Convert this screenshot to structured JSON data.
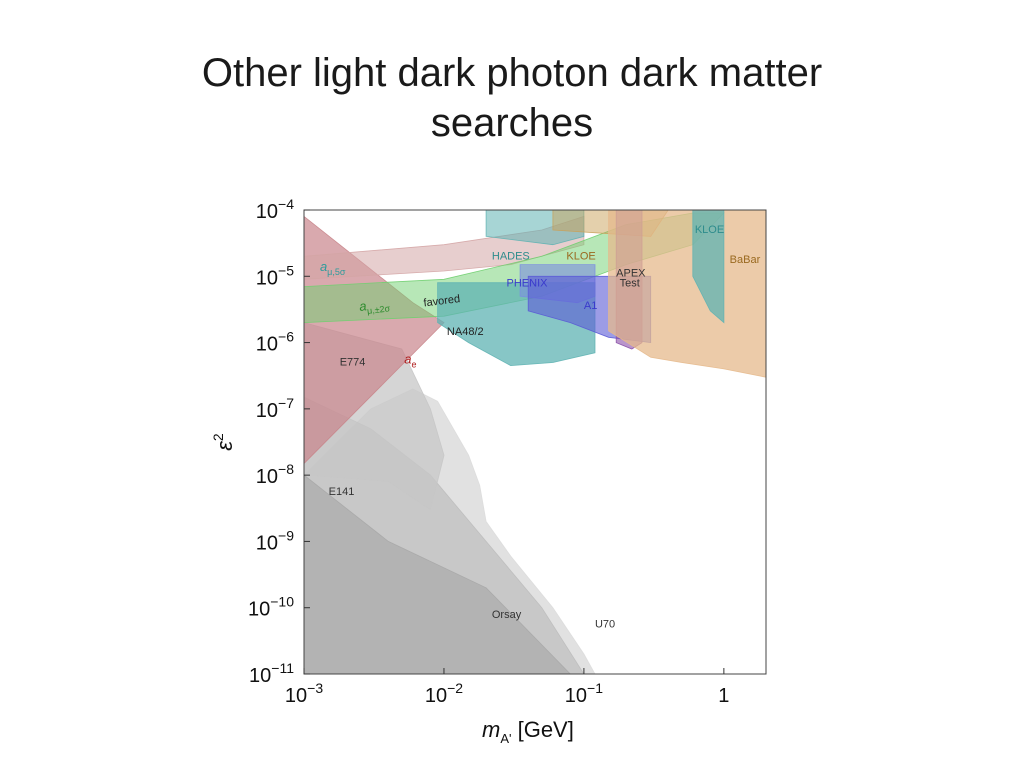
{
  "slide": {
    "title_line1": "Other light dark photon dark matter",
    "title_line2": "searches"
  },
  "colors": {
    "gray": "#b5b5b5",
    "light_gray": "#d9d9d9",
    "red": "#c9858b",
    "green": "#6fcf6f",
    "teal": "#5fb3b3",
    "orange": "#e6b98c",
    "purple": "#8a4fa8",
    "blue": "#5a5ad6"
  },
  "chart_data": {
    "type": "area",
    "xscale": "log",
    "yscale": "log",
    "xlim": [
      0.001,
      2
    ],
    "ylim": [
      1e-11,
      0.0001
    ],
    "xlabel_main": "m",
    "xlabel_sub": "A'",
    "xlabel_unit": " [GeV]",
    "ylabel_main": "ε",
    "ylabel_sup": "2",
    "x_ticks": [
      {
        "value": 0.001,
        "base": "10",
        "exp": "−3"
      },
      {
        "value": 0.01,
        "base": "10",
        "exp": "−2"
      },
      {
        "value": 0.1,
        "base": "10",
        "exp": "−1"
      },
      {
        "value": 1,
        "base": "1",
        "exp": ""
      }
    ],
    "y_ticks": [
      {
        "value": 0.0001,
        "base": "10",
        "exp": "−4"
      },
      {
        "value": 1e-05,
        "base": "10",
        "exp": "−5"
      },
      {
        "value": 1e-06,
        "base": "10",
        "exp": "−6"
      },
      {
        "value": 1e-07,
        "base": "10",
        "exp": "−7"
      },
      {
        "value": 1e-08,
        "base": "10",
        "exp": "−8"
      },
      {
        "value": 1e-09,
        "base": "10",
        "exp": "−9"
      },
      {
        "value": 1e-10,
        "base": "10",
        "exp": "−10"
      },
      {
        "value": 1e-11,
        "base": "10",
        "exp": "−11"
      }
    ],
    "regions": [
      {
        "name": "U70",
        "color": "#dcdcdc",
        "opacity": 0.85,
        "points": [
          [
            0.001,
            1e-11
          ],
          [
            0.12,
            1e-11
          ],
          [
            0.1,
            2e-11
          ],
          [
            0.06,
            1e-10
          ],
          [
            0.03,
            6e-10
          ],
          [
            0.02,
            2e-09
          ],
          [
            0.018,
            7e-09
          ],
          [
            0.015,
            2e-08
          ],
          [
            0.009,
            1.3e-07
          ],
          [
            0.006,
            2e-07
          ],
          [
            0.003,
            1e-07
          ],
          [
            0.001,
            1e-08
          ]
        ]
      },
      {
        "name": "Orsay",
        "color": "#bdbdbd",
        "opacity": 0.7,
        "points": [
          [
            0.001,
            1e-11
          ],
          [
            0.1,
            1e-11
          ],
          [
            0.05,
            1e-10
          ],
          [
            0.02,
            1e-09
          ],
          [
            0.008,
            1e-08
          ],
          [
            0.003,
            5e-08
          ],
          [
            0.0015,
            1e-07
          ],
          [
            0.001,
            1.5e-07
          ]
        ]
      },
      {
        "name": "E141",
        "color": "#a8a8a8",
        "opacity": 0.65,
        "points": [
          [
            0.001,
            1e-08
          ],
          [
            0.004,
            1e-09
          ],
          [
            0.02,
            2e-10
          ],
          [
            0.08,
            1e-11
          ],
          [
            0.001,
            1e-11
          ]
        ]
      },
      {
        "name": "E774",
        "color": "#c7c7c7",
        "opacity": 0.75,
        "points": [
          [
            0.001,
            2e-06
          ],
          [
            0.005,
            8e-07
          ],
          [
            0.008,
            1e-07
          ],
          [
            0.01,
            2e-08
          ],
          [
            0.008,
            3e-09
          ],
          [
            0.004,
            8e-09
          ],
          [
            0.001,
            1e-08
          ]
        ]
      },
      {
        "name": "a_e",
        "color": "#c9858b",
        "opacity": 0.7,
        "points": [
          [
            0.001,
            8e-05
          ],
          [
            0.006,
            4e-06
          ],
          [
            0.01,
            2e-06
          ],
          [
            0.001,
            1.5e-08
          ]
        ]
      },
      {
        "name": "a_mu_5sigma",
        "color": "#d4a5a5",
        "opacity": 0.55,
        "points": [
          [
            0.001,
            2e-05
          ],
          [
            0.01,
            3e-05
          ],
          [
            0.05,
            5e-05
          ],
          [
            0.1,
            8e-05
          ],
          [
            0.1,
            3e-05
          ],
          [
            0.03,
            1.5e-05
          ],
          [
            0.01,
            1.2e-05
          ],
          [
            0.001,
            9e-06
          ]
        ]
      },
      {
        "name": "a_mu_favored",
        "color": "#6fcf6f",
        "opacity": 0.5,
        "points": [
          [
            0.001,
            7e-06
          ],
          [
            0.01,
            9e-06
          ],
          [
            0.05,
            2e-05
          ],
          [
            0.2,
            6e-05
          ],
          [
            0.6,
            9e-05
          ],
          [
            1,
            9e-05
          ],
          [
            0.6,
            3e-05
          ],
          [
            0.2,
            1.5e-05
          ],
          [
            0.05,
            5e-06
          ],
          [
            0.01,
            2.5e-06
          ],
          [
            0.001,
            2e-06
          ]
        ]
      },
      {
        "name": "NA48/2",
        "color": "#5fb3b3",
        "opacity": 0.75,
        "points": [
          [
            0.009,
            2e-06
          ],
          [
            0.015,
            1e-06
          ],
          [
            0.03,
            4.5e-07
          ],
          [
            0.06,
            5e-07
          ],
          [
            0.12,
            7e-07
          ],
          [
            0.12,
            8e-06
          ],
          [
            0.009,
            8e-06
          ]
        ]
      },
      {
        "name": "HADES",
        "color": "#5fb3b3",
        "opacity": 0.55,
        "points": [
          [
            0.02,
            4e-05
          ],
          [
            0.06,
            3e-05
          ],
          [
            0.1,
            4e-05
          ],
          [
            0.1,
            0.0001
          ],
          [
            0.02,
            0.0001
          ]
        ]
      },
      {
        "name": "KLOE",
        "color": "#c9a15a",
        "opacity": 0.5,
        "points": [
          [
            0.06,
            5e-05
          ],
          [
            0.3,
            4e-05
          ],
          [
            0.4,
            0.0001
          ],
          [
            0.06,
            0.0001
          ]
        ]
      },
      {
        "name": "PHENIX",
        "color": "#7c8ee0",
        "opacity": 0.6,
        "points": [
          [
            0.035,
            5e-06
          ],
          [
            0.09,
            4e-06
          ],
          [
            0.12,
            5e-06
          ],
          [
            0.12,
            1.5e-05
          ],
          [
            0.035,
            1.5e-05
          ]
        ]
      },
      {
        "name": "A1",
        "color": "#5a5ad6",
        "opacity": 0.6,
        "points": [
          [
            0.04,
            3e-06
          ],
          [
            0.08,
            2e-06
          ],
          [
            0.15,
            1.2e-06
          ],
          [
            0.3,
            1e-06
          ],
          [
            0.3,
            1e-05
          ],
          [
            0.04,
            1e-05
          ]
        ]
      },
      {
        "name": "APEX Test",
        "color": "#8a4fa8",
        "opacity": 0.6,
        "points": [
          [
            0.17,
            1e-06
          ],
          [
            0.22,
            8e-07
          ],
          [
            0.26,
            1e-06
          ],
          [
            0.26,
            0.0001
          ],
          [
            0.17,
            0.0001
          ]
        ]
      },
      {
        "name": "BaBar",
        "color": "#e6b98c",
        "opacity": 0.75,
        "points": [
          [
            0.15,
            1.5e-06
          ],
          [
            0.3,
            6e-07
          ],
          [
            0.5,
            5e-07
          ],
          [
            1,
            4e-07
          ],
          [
            2,
            3e-07
          ],
          [
            2,
            0.0001
          ],
          [
            0.15,
            0.0001
          ]
        ]
      },
      {
        "name": "KLOE_teal",
        "color": "#5fb3b3",
        "opacity": 0.75,
        "points": [
          [
            0.6,
            1e-05
          ],
          [
            0.8,
            3e-06
          ],
          [
            1,
            2e-06
          ],
          [
            1,
            0.0001
          ],
          [
            0.6,
            0.0001
          ]
        ]
      }
    ],
    "annotations": [
      {
        "label": "a",
        "sub": "μ,5σ",
        "x": 0.0013,
        "y": 1.2e-05,
        "color": "#2e9c9c",
        "rotate": 0
      },
      {
        "label": "HADES",
        "x": 0.022,
        "y": 1.8e-05,
        "color": "#2e8c8c",
        "rotate": 0
      },
      {
        "label": "KLOE",
        "x": 0.075,
        "y": 1.8e-05,
        "color": "#9a6a20",
        "rotate": 0
      },
      {
        "label": "KLOE",
        "x": 0.62,
        "y": 4.5e-05,
        "color": "#2e8c8c",
        "rotate": 0
      },
      {
        "label": "BaBar",
        "x": 1.1,
        "y": 1.6e-05,
        "color": "#9a6a20",
        "rotate": 0
      },
      {
        "label": "APEX",
        "x": 0.17,
        "y": 1e-05,
        "color": "#333333",
        "rotate": 0
      },
      {
        "label": "Test",
        "x": 0.18,
        "y": 7e-06,
        "color": "#333333",
        "rotate": 0
      },
      {
        "label": "PHENIX",
        "x": 0.028,
        "y": 7e-06,
        "color": "#3a3acc",
        "rotate": 0
      },
      {
        "label": "A1",
        "x": 0.1,
        "y": 3.2e-06,
        "color": "#3a3acc",
        "rotate": 0
      },
      {
        "label": "a",
        "sub": "μ,±2σ",
        "x": 0.0025,
        "y": 3e-06,
        "color": "#2e8c2e",
        "rotate": -7
      },
      {
        "label": "favored",
        "x": 0.0072,
        "y": 3.5e-06,
        "color": "#222222",
        "rotate": -7
      },
      {
        "label": "NA48/2",
        "x": 0.0105,
        "y": 1.3e-06,
        "color": "#222222",
        "rotate": 0
      },
      {
        "label": "E774",
        "x": 0.0018,
        "y": 4.5e-07,
        "color": "#333333",
        "rotate": 0
      },
      {
        "label": "a",
        "sub": "e",
        "x": 0.0052,
        "y": 4.8e-07,
        "color": "#b02020",
        "rotate": 0
      },
      {
        "label": "E141",
        "x": 0.0015,
        "y": 5e-09,
        "color": "#333333",
        "rotate": 0
      },
      {
        "label": "Orsay",
        "x": 0.022,
        "y": 7e-11,
        "color": "#333333",
        "rotate": 0
      },
      {
        "label": "U70",
        "x": 0.12,
        "y": 5e-11,
        "color": "#333333",
        "rotate": 0
      }
    ]
  }
}
